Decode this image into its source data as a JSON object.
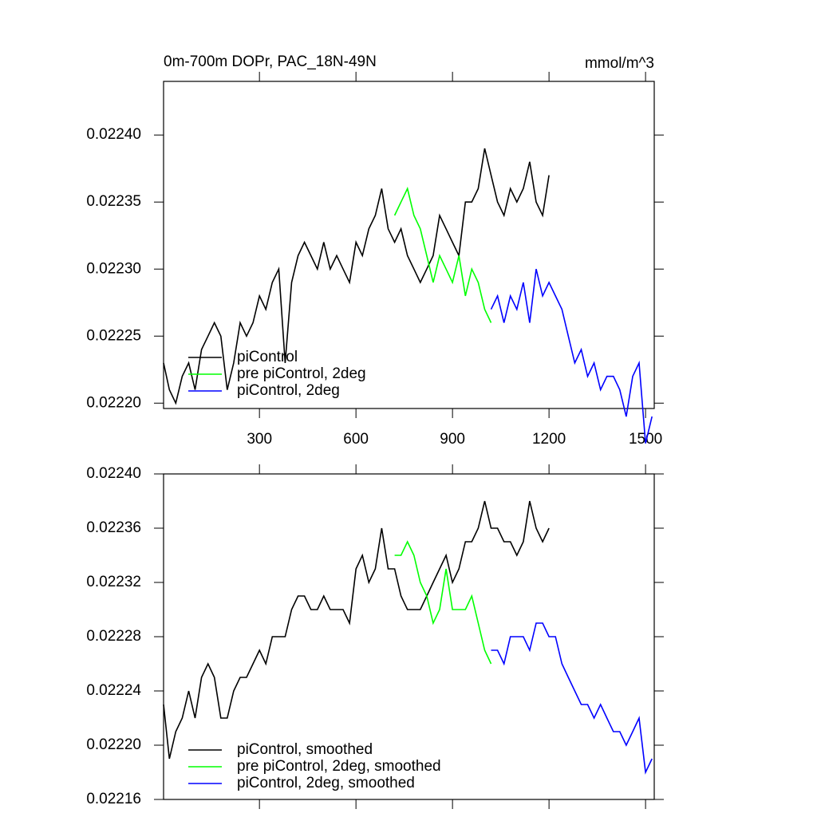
{
  "chart_data": [
    {
      "type": "line",
      "title": "0m-700m DOPr, PAC_18N-49N",
      "units": "mmol/m^3",
      "xlim": [
        2,
        1527
      ],
      "xticks": [
        300,
        600,
        900,
        1200,
        1500
      ],
      "xtick_labels": true,
      "ylim": [
        0.022196,
        0.02244
      ],
      "yticks": [
        {
          "value": 0.0224,
          "label": "0.02240"
        },
        0.02235,
        {
          "value": 0.0223,
          "label": "0.02230"
        },
        0.02225,
        {
          "value": 0.0222,
          "label": "0.02220"
        }
      ],
      "series": [
        {
          "name": "piControl",
          "color": "#000000",
          "x": [
            2,
            20,
            40,
            60,
            80,
            100,
            120,
            140,
            160,
            180,
            200,
            220,
            240,
            260,
            280,
            300,
            320,
            340,
            360,
            380,
            400,
            420,
            440,
            460,
            480,
            500,
            520,
            540,
            560,
            580,
            600,
            620,
            640,
            660,
            680,
            700,
            720,
            740,
            760,
            780,
            800,
            820,
            840,
            860,
            880,
            900,
            920,
            940,
            960,
            980,
            1000,
            1020,
            1040,
            1060,
            1080,
            1100,
            1120,
            1140,
            1160,
            1180,
            1200
          ],
          "values": [
            0.02223,
            0.02221,
            0.0222,
            0.02222,
            0.02223,
            0.02221,
            0.02224,
            0.02225,
            0.02226,
            0.02225,
            0.02221,
            0.02223,
            0.02226,
            0.02225,
            0.02226,
            0.02228,
            0.02227,
            0.02229,
            0.0223,
            0.02223,
            0.02229,
            0.02231,
            0.02232,
            0.02231,
            0.0223,
            0.02232,
            0.0223,
            0.02231,
            0.0223,
            0.02229,
            0.02232,
            0.02231,
            0.02233,
            0.02234,
            0.02236,
            0.02233,
            0.02232,
            0.02233,
            0.02231,
            0.0223,
            0.02229,
            0.0223,
            0.02231,
            0.02234,
            0.02233,
            0.02232,
            0.02231,
            0.02235,
            0.02235,
            0.02236,
            0.02239,
            0.02237,
            0.02235,
            0.02234,
            0.02236,
            0.02235,
            0.02236,
            0.02238,
            0.02235,
            0.02234,
            0.02237
          ]
        },
        {
          "name": "pre piControl, 2deg",
          "color": "#00ff00",
          "x": [
            720,
            740,
            760,
            780,
            800,
            820,
            840,
            860,
            880,
            900,
            920,
            940,
            960,
            980,
            1000,
            1020
          ],
          "values": [
            0.02234,
            0.02235,
            0.02236,
            0.02234,
            0.02233,
            0.02231,
            0.02229,
            0.02231,
            0.0223,
            0.02229,
            0.02231,
            0.02228,
            0.0223,
            0.02229,
            0.02227,
            0.02226
          ]
        },
        {
          "name": "piControl, 2deg",
          "color": "#0000ff",
          "x": [
            1020,
            1040,
            1060,
            1080,
            1100,
            1120,
            1140,
            1160,
            1180,
            1200,
            1220,
            1240,
            1260,
            1280,
            1300,
            1320,
            1340,
            1360,
            1380,
            1400,
            1420,
            1440,
            1460,
            1480,
            1500,
            1520
          ],
          "values": [
            0.02227,
            0.02228,
            0.02226,
            0.02228,
            0.02227,
            0.02229,
            0.02226,
            0.0223,
            0.02228,
            0.02229,
            0.02228,
            0.02227,
            0.02225,
            0.02223,
            0.02224,
            0.02222,
            0.02223,
            0.02221,
            0.02222,
            0.02222,
            0.02221,
            0.02219,
            0.02222,
            0.02223,
            0.02217,
            0.02219
          ]
        }
      ]
    },
    {
      "type": "line",
      "xlim": [
        2,
        1527
      ],
      "xticks": [
        300,
        600,
        900,
        1200,
        1500
      ],
      "xtick_labels": false,
      "ylim": [
        0.02216,
        0.0224
      ],
      "yticks": [
        {
          "value": 0.0224,
          "label": "0.02240"
        },
        0.02236,
        0.02232,
        0.02228,
        0.02224,
        {
          "value": 0.0222,
          "label": "0.02220"
        },
        0.02216
      ],
      "series": [
        {
          "name": "piControl, smoothed",
          "color": "#000000",
          "x": [
            2,
            20,
            40,
            60,
            80,
            100,
            120,
            140,
            160,
            180,
            200,
            220,
            240,
            260,
            280,
            300,
            320,
            340,
            360,
            380,
            400,
            420,
            440,
            460,
            480,
            500,
            520,
            540,
            560,
            580,
            600,
            620,
            640,
            660,
            680,
            700,
            720,
            740,
            760,
            780,
            800,
            820,
            840,
            860,
            880,
            900,
            920,
            940,
            960,
            980,
            1000,
            1020,
            1040,
            1060,
            1080,
            1100,
            1120,
            1140,
            1160,
            1180,
            1200
          ],
          "values": [
            0.02223,
            0.02219,
            0.02221,
            0.02222,
            0.02224,
            0.02222,
            0.02225,
            0.02226,
            0.02225,
            0.02222,
            0.02222,
            0.02224,
            0.02225,
            0.02225,
            0.02226,
            0.02227,
            0.02226,
            0.02228,
            0.02228,
            0.02228,
            0.0223,
            0.02231,
            0.02231,
            0.0223,
            0.0223,
            0.02231,
            0.0223,
            0.0223,
            0.0223,
            0.02229,
            0.02233,
            0.02234,
            0.02232,
            0.02233,
            0.02236,
            0.02233,
            0.02233,
            0.02231,
            0.0223,
            0.0223,
            0.0223,
            0.02231,
            0.02232,
            0.02233,
            0.02234,
            0.02232,
            0.02233,
            0.02235,
            0.02235,
            0.02236,
            0.02238,
            0.02236,
            0.02236,
            0.02235,
            0.02235,
            0.02234,
            0.02235,
            0.02238,
            0.02236,
            0.02235,
            0.02236
          ]
        },
        {
          "name": "pre piControl, 2deg, smoothed",
          "color": "#00ff00",
          "x": [
            720,
            740,
            760,
            780,
            800,
            820,
            840,
            860,
            880,
            900,
            920,
            940,
            960,
            980,
            1000,
            1020
          ],
          "values": [
            0.02234,
            0.02234,
            0.02235,
            0.02234,
            0.02232,
            0.02231,
            0.02229,
            0.0223,
            0.02233,
            0.0223,
            0.0223,
            0.0223,
            0.02231,
            0.02229,
            0.02227,
            0.02226
          ]
        },
        {
          "name": "piControl, 2deg, smoothed",
          "color": "#0000ff",
          "x": [
            1020,
            1040,
            1060,
            1080,
            1100,
            1120,
            1140,
            1160,
            1180,
            1200,
            1220,
            1240,
            1260,
            1280,
            1300,
            1320,
            1340,
            1360,
            1380,
            1400,
            1420,
            1440,
            1460,
            1480,
            1500,
            1520
          ],
          "values": [
            0.02227,
            0.02227,
            0.02226,
            0.02228,
            0.02228,
            0.02228,
            0.02227,
            0.02229,
            0.02229,
            0.02228,
            0.02228,
            0.02226,
            0.02225,
            0.02224,
            0.02223,
            0.02223,
            0.02222,
            0.02223,
            0.02222,
            0.02221,
            0.02221,
            0.0222,
            0.02221,
            0.02222,
            0.02218,
            0.02219
          ]
        }
      ]
    }
  ]
}
